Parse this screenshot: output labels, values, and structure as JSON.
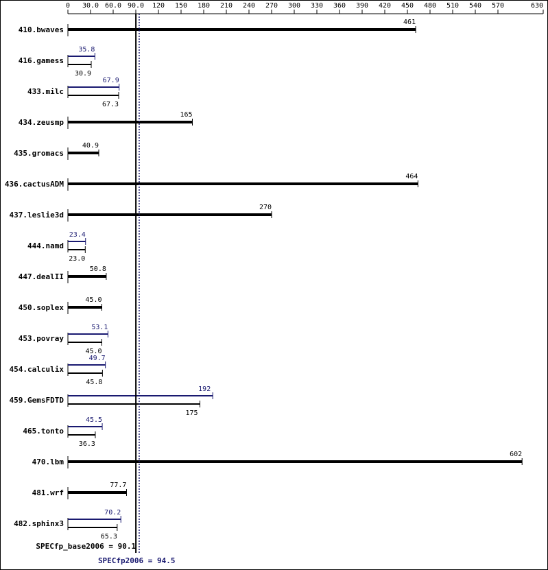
{
  "chart_data": {
    "type": "bar",
    "orientation": "horizontal",
    "categories": [
      "410.bwaves",
      "416.gamess",
      "433.milc",
      "434.zeusmp",
      "435.gromacs",
      "436.cactusADM",
      "437.leslie3d",
      "444.namd",
      "447.dealII",
      "450.soplex",
      "453.povray",
      "454.calculix",
      "459.GemsFDTD",
      "465.tonto",
      "470.lbm",
      "481.wrf",
      "482.sphinx3"
    ],
    "series": [
      {
        "color": "#191970",
        "values": [
          null,
          35.8,
          67.9,
          null,
          null,
          null,
          null,
          23.4,
          null,
          null,
          53.1,
          49.7,
          192,
          45.5,
          null,
          null,
          70.2
        ],
        "value_labels": [
          null,
          "35.8",
          "67.9",
          null,
          null,
          null,
          null,
          "23.4",
          null,
          null,
          "53.1",
          "49.7",
          "192",
          "45.5",
          null,
          null,
          "70.2"
        ]
      },
      {
        "color": "#000000",
        "values": [
          461,
          30.9,
          67.3,
          165,
          40.9,
          464,
          270,
          23.0,
          50.8,
          45.0,
          45.0,
          45.8,
          175,
          36.3,
          602,
          77.7,
          65.3
        ],
        "value_labels": [
          "461",
          "30.9",
          "67.3",
          "165",
          "40.9",
          "464",
          "270",
          "23.0",
          "50.8",
          "45.0",
          "45.0",
          "45.8",
          "175",
          "36.3",
          "602",
          "77.7",
          "65.3"
        ]
      }
    ],
    "xlim": [
      0,
      630
    ],
    "xticks": [
      0,
      {
        "value": 30,
        "label": "30.0"
      },
      {
        "value": 60,
        "label": "60.0"
      },
      {
        "value": 90,
        "label": "90.0"
      },
      120,
      150,
      180,
      210,
      240,
      270,
      300,
      330,
      360,
      390,
      420,
      450,
      480,
      510,
      540,
      570,
      630
    ],
    "reference_lines": [
      {
        "label": "SPECfp_base2006 = 90.1",
        "value": 90.1,
        "color": "#000000"
      },
      {
        "label": "SPECfp2006 = 94.5",
        "value": 94.5,
        "color": "#191970"
      }
    ]
  }
}
